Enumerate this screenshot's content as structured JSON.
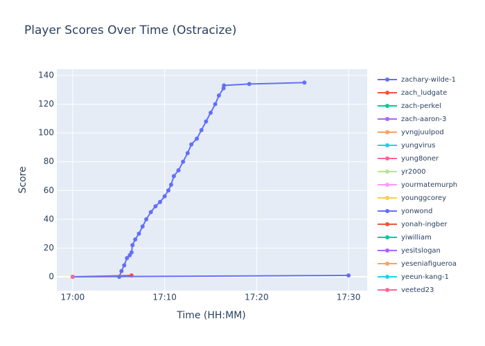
{
  "chart_data": {
    "type": "line",
    "title": "Player Scores Over Time (Ostracize)",
    "x_label": "Time (HH:MM)",
    "y_label": "Score",
    "xlim": [
      -1.73,
      32.03
    ],
    "ylim": [
      -9.6,
      144.3
    ],
    "xticks": [
      {
        "value": 0,
        "label": "17:00"
      },
      {
        "value": 10,
        "label": "17:10"
      },
      {
        "value": 20,
        "label": "17:20"
      },
      {
        "value": 30,
        "label": "17:30"
      }
    ],
    "yticks": [
      0,
      20,
      40,
      60,
      80,
      100,
      120,
      140
    ],
    "grid": true,
    "legend": "right",
    "series": [
      {
        "name": "zachary-wilde-1",
        "color": "#636efa",
        "x": [
          5.05,
          5.3,
          5.6,
          5.9,
          6.2,
          6.4,
          6.5,
          6.8,
          7.2,
          7.6,
          8.0,
          8.5,
          9.0,
          9.5,
          10.0,
          10.4,
          10.7,
          11.0,
          11.5,
          12.0,
          12.5,
          12.9,
          13.5,
          14.0,
          14.5,
          15.0,
          15.5,
          15.9,
          16.4,
          16.45,
          19.2,
          25.2
        ],
        "values": [
          0,
          4,
          8,
          13,
          15,
          17,
          22,
          26,
          30,
          35,
          40,
          45,
          49,
          52,
          56,
          60,
          64,
          70,
          74,
          80,
          86,
          92,
          96,
          102,
          108,
          114,
          120,
          126,
          131,
          133,
          134,
          135
        ]
      },
      {
        "name": "zach_ludgate",
        "color": "#EF553B",
        "x": [
          0,
          6.4
        ],
        "values": [
          0,
          1
        ]
      },
      {
        "name": "zach-perkel",
        "color": "#00cc96",
        "x": [
          0
        ],
        "values": [
          0
        ]
      },
      {
        "name": "zach-aaron-3",
        "color": "#ab63fa",
        "x": [
          0
        ],
        "values": [
          0
        ]
      },
      {
        "name": "yvngjuulpod",
        "color": "#FFA15A",
        "x": [
          0
        ],
        "values": [
          0
        ]
      },
      {
        "name": "yungvirus",
        "color": "#19d3f3",
        "x": [
          0
        ],
        "values": [
          0
        ]
      },
      {
        "name": "yung8oner",
        "color": "#FF6692",
        "x": [
          0
        ],
        "values": [
          0
        ]
      },
      {
        "name": "yr2000",
        "color": "#B6E880",
        "x": [
          0
        ],
        "values": [
          0
        ]
      },
      {
        "name": "yourmatemurph",
        "color": "#FF97FF",
        "x": [
          0
        ],
        "values": [
          0
        ]
      },
      {
        "name": "younggcorey",
        "color": "#FECB52",
        "x": [
          0
        ],
        "values": [
          0
        ]
      },
      {
        "name": "yonwond",
        "color": "#636efa",
        "x": [
          0,
          30
        ],
        "values": [
          0,
          1
        ]
      },
      {
        "name": "yonah-ingber",
        "color": "#EF553B",
        "x": [
          0
        ],
        "values": [
          0
        ]
      },
      {
        "name": "yiwilliam",
        "color": "#00cc96",
        "x": [
          0
        ],
        "values": [
          0
        ]
      },
      {
        "name": "yesitslogan",
        "color": "#ab63fa",
        "x": [
          0
        ],
        "values": [
          0
        ]
      },
      {
        "name": "yeseniafigueroa",
        "color": "#FFA15A",
        "x": [
          0
        ],
        "values": [
          0
        ]
      },
      {
        "name": "yeeun-kang-1",
        "color": "#19d3f3",
        "x": [
          0
        ],
        "values": [
          0
        ]
      },
      {
        "name": "yeeted23",
        "color": "#FF6692",
        "x": [
          0
        ],
        "values": [
          0
        ]
      }
    ]
  }
}
